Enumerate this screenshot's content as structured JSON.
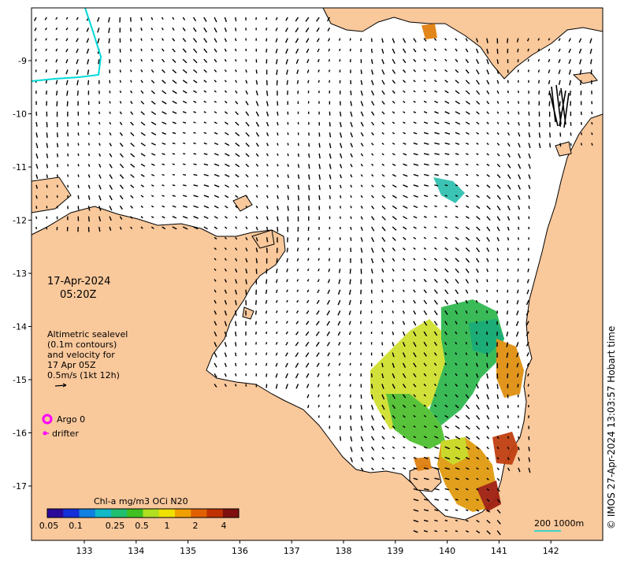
{
  "map": {
    "date_line1": "17-Apr-2024",
    "date_line2": "05:20Z",
    "info_lines": [
      "Altimetric sealevel",
      "(0.1m contours)",
      "and velocity for",
      "17 Apr 05Z",
      "0.5m/s (1kt 12h)"
    ],
    "legend": {
      "argo_label": "Argo 0",
      "drifter_label": "drifter",
      "argo_color": "#ff00ff",
      "drifter_color": "#ff00ff"
    },
    "colorbar": {
      "title": "Chl-a mg/m3 OCi N20",
      "ticks": [
        "0.05",
        "0.1",
        "0.25",
        "0.5",
        "1",
        "2",
        "4"
      ],
      "colors": [
        "#2b0a9a",
        "#1430d8",
        "#1180e0",
        "#10b8c8",
        "#20c070",
        "#40c020",
        "#b0e020",
        "#f0e000",
        "#f0a000",
        "#e06000",
        "#c03000",
        "#801010"
      ]
    },
    "scale_label": "200  1000m",
    "credit": "© IMOS 27-Apr-2024 13:03:57 Hobart time",
    "x_axis": {
      "min": 132,
      "max": 143,
      "ticks": [
        "133",
        "134",
        "135",
        "136",
        "137",
        "138",
        "139",
        "140",
        "141",
        "142"
      ]
    },
    "y_axis": {
      "min": -17.6,
      "max": -8.2,
      "ticks": [
        "-9",
        "-10",
        "-11",
        "-12",
        "-13",
        "-14",
        "-15",
        "-16",
        "-17"
      ]
    },
    "colors": {
      "land": "#f9c89b",
      "ocean": "#ffffff",
      "coast": "#000000",
      "contour": "#00d8d8"
    }
  }
}
